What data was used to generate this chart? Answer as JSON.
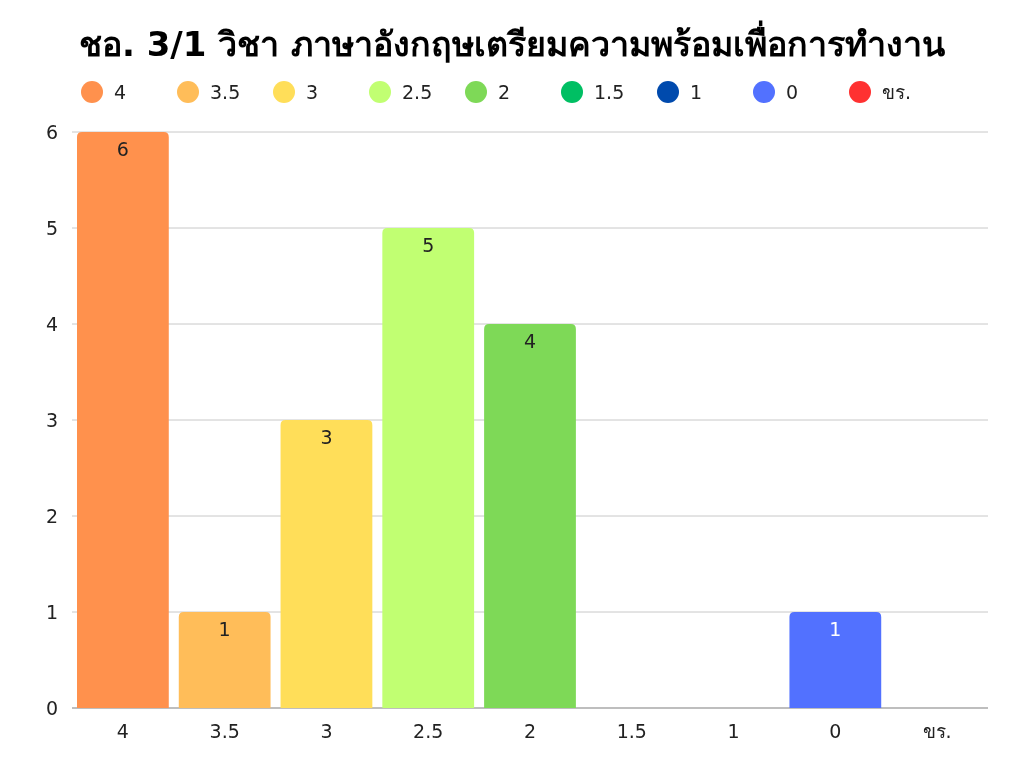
{
  "chart_data": {
    "type": "bar",
    "title": "ชอ. 3/1 วิชา ภาษาอังกฤษเตรียมความพร้อมเพื่อการทำงาน",
    "categories": [
      "4",
      "3.5",
      "3",
      "2.5",
      "2",
      "1.5",
      "1",
      "0",
      "ขร."
    ],
    "series": [
      {
        "name": "4",
        "color": "#ff914d",
        "values": [
          6,
          null,
          null,
          null,
          null,
          null,
          null,
          null,
          null
        ],
        "value_labels": [
          "6",
          null,
          null,
          null,
          null,
          null,
          null,
          null,
          null
        ]
      },
      {
        "name": "3.5",
        "color": "#ffbd59",
        "values": [
          null,
          1,
          null,
          null,
          null,
          null,
          null,
          null,
          null
        ],
        "value_labels": [
          null,
          "1",
          null,
          null,
          null,
          null,
          null,
          null,
          null
        ]
      },
      {
        "name": "3",
        "color": "#ffde59",
        "values": [
          null,
          null,
          3,
          null,
          null,
          null,
          null,
          null,
          null
        ],
        "value_labels": [
          null,
          null,
          "3",
          null,
          null,
          null,
          null,
          null,
          null
        ]
      },
      {
        "name": "2.5",
        "color": "#c1ff72",
        "values": [
          null,
          null,
          null,
          5,
          null,
          null,
          null,
          null,
          null
        ],
        "value_labels": [
          null,
          null,
          null,
          "5",
          null,
          null,
          null,
          null,
          null
        ]
      },
      {
        "name": "2",
        "color": "#7ed957",
        "values": [
          null,
          null,
          null,
          null,
          4,
          null,
          null,
          null,
          null
        ],
        "value_labels": [
          null,
          null,
          null,
          null,
          "4",
          null,
          null,
          null,
          null
        ]
      },
      {
        "name": "1.5",
        "color": "#00bf63",
        "values": [
          null,
          null,
          null,
          null,
          null,
          0,
          null,
          null,
          null
        ]
      },
      {
        "name": "1",
        "color": "#004aad",
        "values": [
          null,
          null,
          null,
          null,
          null,
          null,
          0,
          null,
          null
        ]
      },
      {
        "name": "0",
        "color": "#5271ff",
        "values": [
          null,
          null,
          null,
          null,
          null,
          null,
          null,
          1,
          null
        ],
        "value_labels": [
          null,
          null,
          null,
          null,
          null,
          null,
          null,
          "1",
          null
        ]
      },
      {
        "name": "ขร.",
        "color": "#ff3131",
        "values": [
          null,
          null,
          null,
          null,
          null,
          null,
          null,
          null,
          0
        ]
      }
    ],
    "ylim": [
      0,
      6
    ],
    "yticks": [
      0,
      1,
      2,
      3,
      4,
      5,
      6
    ],
    "grid": "y",
    "legend": "top"
  }
}
